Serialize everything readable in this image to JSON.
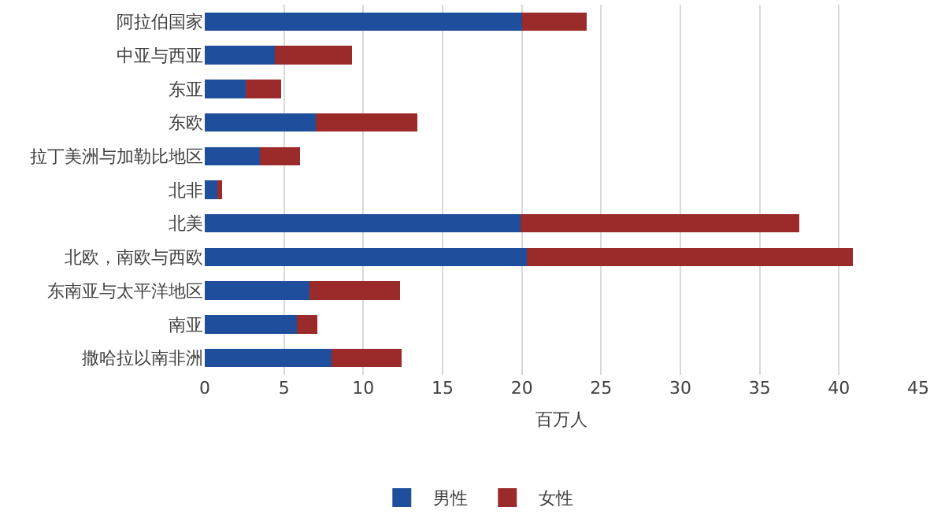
{
  "chart_data": {
    "type": "bar",
    "orientation": "horizontal",
    "stacked": true,
    "xlabel": "百万人",
    "categories": [
      "阿拉伯国家",
      "中亚与西亚",
      "东亚",
      "东欧",
      "拉丁美洲与加勒比地区",
      "北非",
      "北美",
      "北欧，南欧与西欧",
      "东南亚与太平洋地区",
      "南亚",
      "撒哈拉以南非洲"
    ],
    "series": [
      {
        "name": "男性",
        "color": "#1f4e9c",
        "values": [
          20.0,
          4.4,
          2.6,
          7.0,
          3.5,
          0.8,
          19.9,
          20.3,
          6.6,
          5.8,
          8.0
        ]
      },
      {
        "name": "女性",
        "color": "#9b2a2a",
        "values": [
          4.1,
          4.9,
          2.2,
          6.4,
          2.5,
          0.3,
          17.6,
          20.6,
          5.7,
          1.3,
          4.4
        ]
      }
    ],
    "xlim": [
      0,
      45
    ],
    "xticks": [
      0,
      5,
      10,
      15,
      20,
      25,
      30,
      35,
      40,
      45
    ],
    "grid": "x",
    "legend": "bottom"
  }
}
